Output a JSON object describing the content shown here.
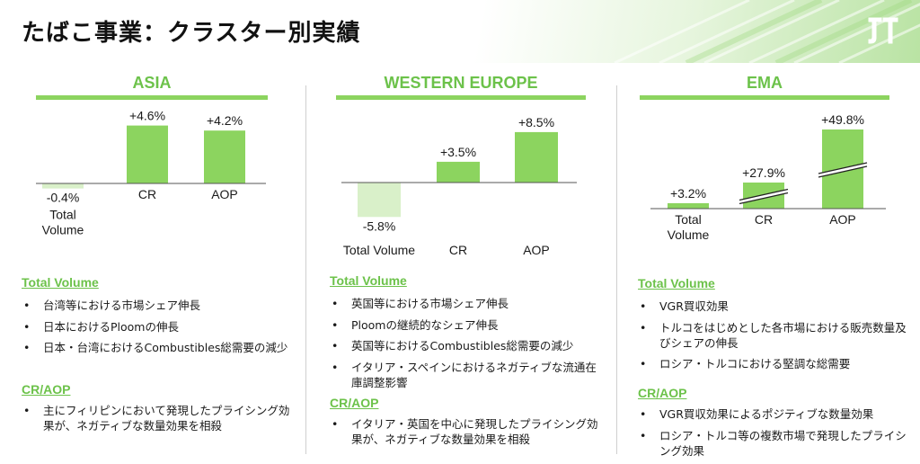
{
  "page": {
    "title": "たばこ事業：クラスター別実績",
    "logo_text": "JT"
  },
  "colors": {
    "accent": "#8cd45f",
    "negative": "#d9f0c9",
    "heading": "#6cc24a"
  },
  "clusters": [
    {
      "name": "ASIA",
      "section1_heading": "Total Volume",
      "section1_bullets": [
        "台湾等における市場シェア伸長",
        "日本におけるPloomの伸長",
        "日本・台湾におけるCombustibles総需要の減少"
      ],
      "section2_heading": "CR/AOP",
      "section2_bullets": [
        "主にフィリピンにおいて発現したプライシング効果が、ネガティブな数量効果を相殺"
      ]
    },
    {
      "name": "WESTERN EUROPE",
      "section1_heading": "Total Volume",
      "section1_bullets": [
        "英国等における市場シェア伸長",
        "Ploomの継続的なシェア伸長",
        "英国等におけるCombustibles総需要の減少",
        "イタリア・スペインにおけるネガティブな流通在庫調整影響"
      ],
      "section2_heading": "CR/AOP",
      "section2_bullets": [
        "イタリア・英国を中心に発現したプライシング効果が、ネガティブな数量効果を相殺"
      ]
    },
    {
      "name": "EMA",
      "section1_heading": "Total Volume",
      "section1_bullets": [
        "VGR買収効果",
        "トルコをはじめとした各市場における販売数量及びシェアの伸長",
        "ロシア・トルコにおける堅調な総需要"
      ],
      "section2_heading": "CR/AOP",
      "section2_bullets": [
        "VGR買収効果によるポジティブな数量効果",
        "ロシア・トルコ等の複数市場で発現したプライシング効果"
      ]
    }
  ],
  "chart_data": [
    {
      "type": "bar",
      "title": "ASIA",
      "categories": [
        "Total\nVolume",
        "CR",
        "AOP"
      ],
      "values": [
        -0.4,
        4.6,
        4.2
      ],
      "labels": [
        "-0.4%",
        "+4.6%",
        "+4.2%"
      ],
      "unit": "%"
    },
    {
      "type": "bar",
      "title": "WESTERN EUROPE",
      "categories": [
        "Total Volume",
        "CR",
        "AOP"
      ],
      "values": [
        -5.8,
        3.5,
        8.5
      ],
      "labels": [
        "-5.8%",
        "+3.5%",
        "+8.5%"
      ],
      "unit": "%"
    },
    {
      "type": "bar",
      "title": "EMA",
      "categories": [
        "Total\nVolume",
        "CR",
        "AOP"
      ],
      "values": [
        3.2,
        27.9,
        49.8
      ],
      "labels": [
        "+3.2%",
        "+27.9%",
        "+49.8%"
      ],
      "unit": "%",
      "axis_break": true
    }
  ]
}
